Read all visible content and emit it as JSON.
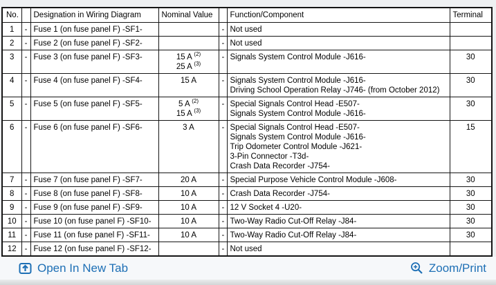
{
  "colors": {
    "link_blue": "#1d6fb5",
    "table_border": "#141414",
    "toolbar_bg": "#f6f8fa"
  },
  "table": {
    "headers": {
      "no": "No.",
      "dash1": "",
      "designation": "Designation in Wiring Diagram",
      "nominal": "Nominal Value",
      "dash2": "",
      "function": "Function/Component",
      "terminal": "Terminal"
    },
    "rows": [
      {
        "no": "1",
        "dash1": "-",
        "designation": "Fuse 1 (on fuse panel F) -SF1-",
        "nominal": [],
        "dash2": "-",
        "functions": [
          "Not used"
        ],
        "terminal": ""
      },
      {
        "no": "2",
        "dash1": "-",
        "designation": "Fuse 2 (on fuse panel F) -SF2-",
        "nominal": [],
        "dash2": "-",
        "functions": [
          "Not used"
        ],
        "terminal": ""
      },
      {
        "no": "3",
        "dash1": "-",
        "designation": "Fuse 3 (on fuse panel F) -SF3-",
        "nominal": [
          {
            "text": "15 A",
            "sup": "(2)"
          },
          {
            "text": "25 A",
            "sup": "(3)"
          }
        ],
        "dash2": "-",
        "functions": [
          "Signals System Control Module -J616-"
        ],
        "terminal": "30"
      },
      {
        "no": "4",
        "dash1": "-",
        "designation": "Fuse 4 (on fuse panel F) -SF4-",
        "nominal": [
          {
            "text": "15 A",
            "sup": ""
          }
        ],
        "dash2": "-",
        "functions": [
          "Signals System Control Module -J616-",
          "Driving School Operation Relay -J746- (from October 2012)"
        ],
        "terminal": "30"
      },
      {
        "no": "5",
        "dash1": "-",
        "designation": "Fuse 5 (on fuse panel F) -SF5-",
        "nominal": [
          {
            "text": "5 A",
            "sup": "(2)"
          },
          {
            "text": "15 A",
            "sup": "(3)"
          }
        ],
        "dash2": "-",
        "functions": [
          "Special Signals Control Head -E507-",
          "Signals System Control Module -J616-"
        ],
        "terminal": "30"
      },
      {
        "no": "6",
        "dash1": "-",
        "designation": "Fuse 6 (on fuse panel F) -SF6-",
        "nominal": [
          {
            "text": "3 A",
            "sup": ""
          }
        ],
        "dash2": "-",
        "functions": [
          "Special Signals Control Head -E507-",
          "Signals System Control Module -J616-",
          "Trip Odometer Control Module -J621-",
          "3-Pin Connector -T3d-",
          "Crash Data Recorder -J754-"
        ],
        "terminal": "15"
      },
      {
        "no": "7",
        "dash1": "-",
        "designation": "Fuse 7 (on fuse panel F) -SF7-",
        "nominal": [
          {
            "text": "20 A",
            "sup": ""
          }
        ],
        "dash2": "-",
        "functions": [
          "Special Purpose Vehicle Control Module -J608-"
        ],
        "terminal": "30"
      },
      {
        "no": "8",
        "dash1": "-",
        "designation": "Fuse 8 (on fuse panel F) -SF8-",
        "nominal": [
          {
            "text": "10 A",
            "sup": ""
          }
        ],
        "dash2": "-",
        "functions": [
          "Crash Data Recorder -J754-"
        ],
        "terminal": "30"
      },
      {
        "no": "9",
        "dash1": "-",
        "designation": "Fuse 9 (on fuse panel F) -SF9-",
        "nominal": [
          {
            "text": "10 A",
            "sup": ""
          }
        ],
        "dash2": "-",
        "functions": [
          "12 V Socket 4 -U20-"
        ],
        "terminal": "30"
      },
      {
        "no": "10",
        "dash1": "-",
        "designation": "Fuse 10 (on fuse panel F) -SF10-",
        "nominal": [
          {
            "text": "10 A",
            "sup": ""
          }
        ],
        "dash2": "-",
        "functions": [
          "Two-Way Radio Cut-Off Relay -J84-"
        ],
        "terminal": "30"
      },
      {
        "no": "11",
        "dash1": "-",
        "designation": "Fuse 11 (on fuse panel F) -SF11-",
        "nominal": [
          {
            "text": "10 A",
            "sup": ""
          }
        ],
        "dash2": "-",
        "functions": [
          "Two-Way Radio Cut-Off Relay -J84-"
        ],
        "terminal": "30"
      },
      {
        "no": "12",
        "dash1": "-",
        "designation": "Fuse 12 (on fuse panel F) -SF12-",
        "nominal": [],
        "dash2": "-",
        "functions": [
          "Not used"
        ],
        "terminal": ""
      }
    ]
  },
  "toolbar": {
    "open_in_new_tab": "Open In New Tab",
    "zoom_print": "Zoom/Print"
  }
}
